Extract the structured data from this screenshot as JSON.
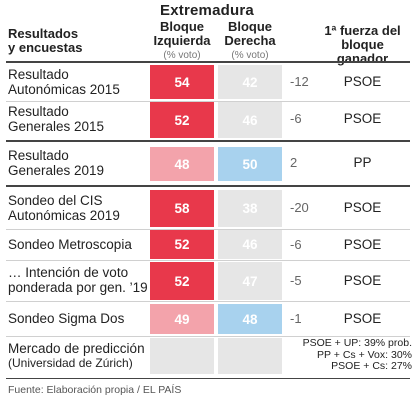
{
  "title": "Extremadura",
  "headers": {
    "left_line1": "Resultados",
    "left_line2": "y encuestas",
    "izq_line1": "Bloque",
    "izq_line2": "Izquierda",
    "izq_sub": "(% voto)",
    "der_line1": "Bloque",
    "der_line2": "Derecha",
    "der_sub": "(% voto)",
    "right_line1": "1ª fuerza del",
    "right_line2": "bloque ganador"
  },
  "rows": [
    {
      "line1": "Resultado",
      "line2": "Autonómicas 2015",
      "izq": "54",
      "der": "42",
      "diff": "-12",
      "winner": "PSOE"
    },
    {
      "line1": "Resultado",
      "line2": "Generales 2015",
      "izq": "52",
      "der": "46",
      "diff": "-6",
      "winner": "PSOE"
    },
    {
      "line1": "Resultado",
      "line2": "Generales 2019",
      "izq": "48",
      "der": "50",
      "diff": "2",
      "winner": "PP"
    },
    {
      "line1": "Sondeo del CIS",
      "line2": "Autonómicas 2019",
      "izq": "58",
      "der": "38",
      "diff": "-20",
      "winner": "PSOE"
    },
    {
      "line1": "Sondeo Metroscopia",
      "line2": "",
      "izq": "52",
      "der": "46",
      "diff": "-6",
      "winner": "PSOE"
    },
    {
      "line1": "… Intención de voto",
      "line2": "ponderada por gen. ’19",
      "izq": "52",
      "der": "47",
      "diff": "-5",
      "winner": "PSOE"
    },
    {
      "line1": "Sondeo Sigma Dos",
      "line2": "",
      "izq": "49",
      "der": "48",
      "diff": "-1",
      "winner": "PSOE"
    },
    {
      "line1": "Mercado de predicción",
      "line2": "(Universidad de Zúrich)",
      "izq": "",
      "der": "",
      "diff": "",
      "winner": ""
    }
  ],
  "market_notes": [
    "PSOE + UP: 39% prob.",
    "PP + Cs + Vox: 30%",
    "PSOE + Cs: 27%"
  ],
  "colors": {
    "red_strong": "#e8384b",
    "red_light": "#f3a3ab",
    "gray_light": "#e6e6e6",
    "blue_light": "#a8d2ee",
    "text_light_gray": "#c4c4c4"
  },
  "source": "Fuente: Elaboración propia / EL PAÍS"
}
